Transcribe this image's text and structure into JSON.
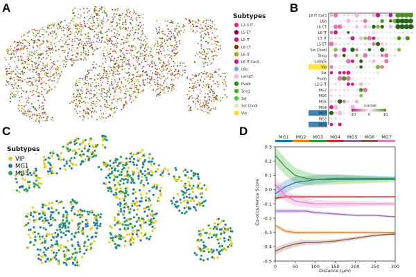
{
  "panels": {
    "a": "A",
    "b": "B",
    "c": "C",
    "d": "D"
  },
  "panel_a": {
    "legend_title": "Subtypes",
    "legend": [
      {
        "label": "L2-3 IT",
        "color": "#e7298a"
      },
      {
        "label": "L5 ET",
        "color": "#8e0152"
      },
      {
        "label": "L5 IT",
        "color": "#c51b7d"
      },
      {
        "label": "L6 CT",
        "color": "#7f3b08"
      },
      {
        "label": "L6 IT",
        "color": "#b5a100"
      },
      {
        "label": "L6 IT Car3",
        "color": "#d01c8b"
      },
      {
        "label": "L6b",
        "color": "#74add1"
      },
      {
        "label": "Lamp5",
        "color": "#f1b6da"
      },
      {
        "label": "Pvalb",
        "color": "#2e8b22"
      },
      {
        "label": "Sncg",
        "color": "#4dac26"
      },
      {
        "label": "Sst",
        "color": "#35d335"
      },
      {
        "label": "Sst Chodl",
        "color": "#e6e6b0"
      },
      {
        "label": "Vip",
        "color": "#ffd700"
      }
    ]
  },
  "panel_b": {
    "rows": [
      "L6 IT Car3",
      "L6b",
      "L6 CT",
      "L6 IT",
      "L5 IT",
      "L5 ET",
      "Sst Chodl",
      "Sncg",
      "Lamp5",
      "Vip",
      "Sst",
      "Pvalb",
      "L2-3 IT",
      "MG7",
      "MG6",
      "MG5",
      "MG4",
      "MG3",
      "MG2",
      "MG1"
    ],
    "highlight_rows": [
      "Vip",
      "MG3",
      "MG1"
    ],
    "colorbar_label": "z-score",
    "colorbar_ticks": [
      "-10",
      "0",
      "10"
    ]
  },
  "panel_c": {
    "legend_title": "Subtypes",
    "legend": [
      {
        "label": "VIP",
        "color": "#e8c811"
      },
      {
        "label": "MG1",
        "color": "#1f77b4"
      },
      {
        "label": "MG3",
        "color": "#2a9d5c"
      }
    ]
  },
  "chart_data": {
    "type": "line",
    "title": "",
    "xlabel": "Distance (μm)",
    "ylabel": "Co-occurrence Score",
    "xlim": [
      0,
      300
    ],
    "ylim": [
      -0.5,
      0.3
    ],
    "xticks": [
      0,
      50,
      100,
      150,
      200,
      250,
      300
    ],
    "yticks": [
      0.3,
      0.2,
      0.1,
      0.0,
      -0.1,
      -0.2,
      -0.3,
      -0.4,
      -0.5
    ],
    "x": [
      0,
      25,
      50,
      75,
      100,
      150,
      200,
      250,
      300
    ],
    "legend": [
      "MG1",
      "MG2",
      "MG3",
      "MG4",
      "MG5",
      "MG6",
      "MG7"
    ],
    "series": [
      {
        "name": "MG1",
        "color": "#1f77b4",
        "values": [
          -0.03,
          0.02,
          0.05,
          0.06,
          0.07,
          0.08,
          0.08,
          0.08,
          0.08
        ]
      },
      {
        "name": "MG2",
        "color": "#ff7f0e",
        "values": [
          -0.25,
          -0.29,
          -0.3,
          -0.3,
          -0.3,
          -0.3,
          -0.3,
          -0.3,
          -0.3
        ]
      },
      {
        "name": "MG3",
        "color": "#2ca02c",
        "values": [
          0.24,
          0.16,
          0.1,
          0.08,
          0.07,
          0.07,
          0.07,
          0.07,
          0.07
        ]
      },
      {
        "name": "MG4",
        "color": "#d62728",
        "values": [
          -0.06,
          -0.05,
          -0.05,
          -0.05,
          -0.05,
          -0.05,
          -0.05,
          -0.05,
          -0.05
        ]
      },
      {
        "name": "MG5",
        "color": "#9467bd",
        "values": [
          -0.15,
          -0.15,
          -0.15,
          -0.15,
          -0.16,
          -0.17,
          -0.18,
          -0.18,
          -0.19
        ]
      },
      {
        "name": "MG6",
        "color": "#8c564b",
        "values": [
          -0.43,
          -0.4,
          -0.38,
          -0.37,
          -0.37,
          -0.36,
          -0.34,
          -0.32,
          -0.31
        ]
      },
      {
        "name": "MG7",
        "color": "#e377c2",
        "values": [
          0.04,
          -0.04,
          -0.08,
          -0.09,
          -0.1,
          -0.1,
          -0.1,
          -0.1,
          -0.1
        ]
      }
    ]
  }
}
